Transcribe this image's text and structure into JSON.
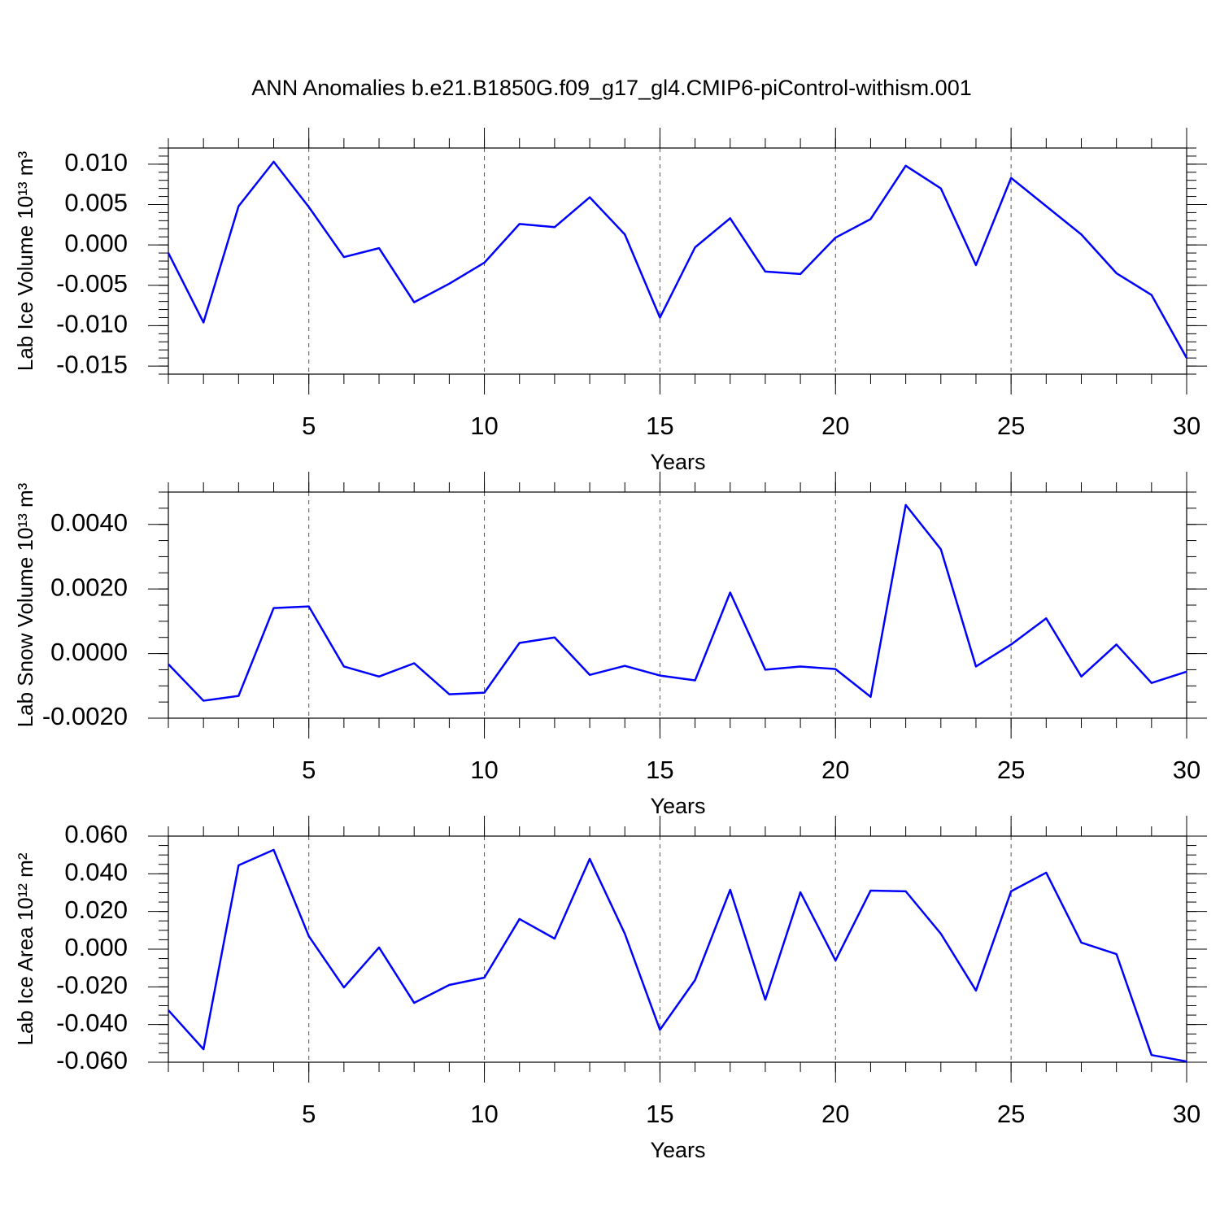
{
  "title": "ANN Anomalies b.e21.B1850G.f09_g17_gl4.CMIP6-piControl-withism.001",
  "chart_data": [
    {
      "type": "line",
      "xlabel": "Years",
      "ylabel": "Lab Ice Volume 10¹³ m³",
      "color": "#0000ff",
      "grid": "x",
      "x": [
        1,
        2,
        3,
        4,
        5,
        6,
        7,
        8,
        9,
        10,
        11,
        12,
        13,
        14,
        15,
        16,
        17,
        18,
        19,
        20,
        21,
        22,
        23,
        24,
        25,
        26,
        27,
        28,
        29,
        30
      ],
      "values": [
        -0.001,
        -0.0096,
        0.0048,
        0.0103,
        0.0047,
        -0.0015,
        -0.0004,
        -0.0071,
        -0.0048,
        -0.0022,
        0.0026,
        0.0022,
        0.0059,
        0.0013,
        -0.009,
        -0.0003,
        0.0033,
        -0.0033,
        -0.0036,
        0.0009,
        0.0032,
        0.0098,
        0.007,
        -0.0025,
        0.0083,
        0.0048,
        0.0013,
        -0.0035,
        -0.0062,
        -0.014
      ],
      "xlim": [
        1,
        30
      ],
      "xticks": [
        5,
        10,
        15,
        20,
        25,
        30
      ],
      "ylim": [
        -0.016,
        0.012
      ],
      "yticks": [
        {
          "value": -0.015,
          "label": "-0.015"
        },
        {
          "value": -0.01,
          "label": "-0.010"
        },
        {
          "value": -0.005,
          "label": "-0.005"
        },
        {
          "value": 0,
          "label": "0.000"
        },
        {
          "value": 0.005,
          "label": "0.005"
        },
        {
          "value": 0.01,
          "label": "0.010"
        }
      ]
    },
    {
      "type": "line",
      "xlabel": "Years",
      "ylabel": "Lab Snow Volume 10¹³ m³",
      "color": "#0000ff",
      "grid": "x",
      "x": [
        1,
        2,
        3,
        4,
        5,
        6,
        7,
        8,
        9,
        10,
        11,
        12,
        13,
        14,
        15,
        16,
        17,
        18,
        19,
        20,
        21,
        22,
        23,
        24,
        25,
        26,
        27,
        28,
        29,
        30
      ],
      "values": [
        -0.00033,
        -0.00146,
        -0.00131,
        0.00141,
        0.00146,
        -0.0004,
        -0.00071,
        -0.0003,
        -0.00126,
        -0.00121,
        0.00033,
        0.0005,
        -0.00066,
        -0.00038,
        -0.00068,
        -0.00083,
        0.00189,
        -0.0005,
        -0.0004,
        -0.00048,
        -0.00134,
        0.0046,
        0.00323,
        -0.0004,
        0.00028,
        0.00109,
        -0.00071,
        0.00028,
        -0.00091,
        -0.00056
      ],
      "xlim": [
        1,
        30
      ],
      "xticks": [
        5,
        10,
        15,
        20,
        25,
        30
      ],
      "ylim": [
        -0.002,
        0.005
      ],
      "yticks": [
        {
          "value": -0.002,
          "label": "-0.0020"
        },
        {
          "value": 0,
          "label": "0.0000"
        },
        {
          "value": 0.002,
          "label": "0.0020"
        },
        {
          "value": 0.004,
          "label": "0.0040"
        }
      ]
    },
    {
      "type": "line",
      "xlabel": "Years",
      "ylabel": "Lab Ice Area 10¹² m²",
      "color": "#0000ff",
      "grid": "x",
      "x": [
        1,
        2,
        3,
        4,
        5,
        6,
        7,
        8,
        9,
        10,
        11,
        12,
        13,
        14,
        15,
        16,
        17,
        18,
        19,
        20,
        21,
        22,
        23,
        24,
        25,
        26,
        27,
        28,
        29,
        30
      ],
      "values": [
        -0.0324,
        -0.0531,
        0.0445,
        0.0527,
        0.0069,
        -0.0203,
        0.0009,
        -0.0285,
        -0.019,
        -0.0151,
        0.016,
        0.0056,
        0.0479,
        0.0082,
        -0.0428,
        -0.0164,
        0.0315,
        -0.0268,
        0.0302,
        -0.006,
        0.0311,
        0.0307,
        0.0082,
        -0.022,
        0.0307,
        0.0406,
        0.0035,
        -0.0026,
        -0.0562,
        -0.0596
      ],
      "xlim": [
        1,
        30
      ],
      "xticks": [
        5,
        10,
        15,
        20,
        25,
        30
      ],
      "ylim": [
        -0.06,
        0.06
      ],
      "yticks": [
        {
          "value": -0.06,
          "label": "-0.060"
        },
        {
          "value": -0.04,
          "label": "-0.040"
        },
        {
          "value": -0.02,
          "label": "-0.020"
        },
        {
          "value": 0,
          "label": "0.000"
        },
        {
          "value": 0.02,
          "label": "0.020"
        },
        {
          "value": 0.04,
          "label": "0.040"
        },
        {
          "value": 0.06,
          "label": "0.060"
        }
      ]
    }
  ]
}
